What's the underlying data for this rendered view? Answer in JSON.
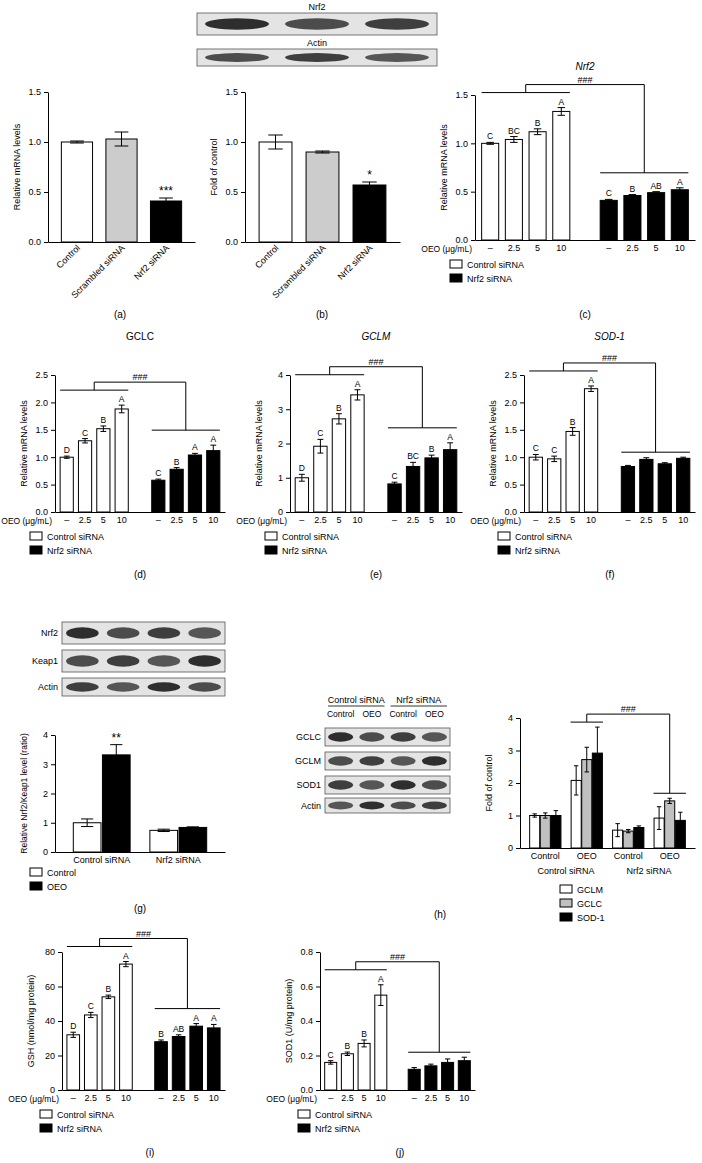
{
  "chart_data": [
    {
      "type": "bar",
      "caption": "(a)",
      "ylabel": "Relative mRNA levels",
      "categories": [
        "Control",
        "Scrambled siRNA",
        "Nrf2 siRNA"
      ],
      "values": [
        1.0,
        1.03,
        0.41
      ],
      "errors": [
        0.01,
        0.07,
        0.03
      ],
      "colors": [
        "#ffffff",
        "#cccccc",
        "#000000"
      ],
      "significance": [
        null,
        null,
        "***"
      ],
      "ylim": [
        0,
        1.5
      ],
      "yticks": [
        {
          "value": 0,
          "label": "0.0"
        },
        {
          "value": 0.5,
          "label": "0.5"
        },
        {
          "value": 1,
          "label": "1.0"
        },
        {
          "value": 1.5,
          "label": "1.5"
        }
      ]
    },
    {
      "type": "bar",
      "caption": "(b)",
      "ylabel": "Fold of control",
      "categories": [
        "Control",
        "Scrambled siRNA",
        "Nrf2 siRNA"
      ],
      "values": [
        1.0,
        0.9,
        0.57
      ],
      "errors": [
        0.07,
        0.01,
        0.03
      ],
      "colors": [
        "#ffffff",
        "#cccccc",
        "#000000"
      ],
      "significance": [
        null,
        null,
        "*"
      ],
      "ylim": [
        0,
        1.5
      ],
      "yticks": [
        {
          "value": 0,
          "label": "0.0"
        },
        {
          "value": 0.5,
          "label": "0.5"
        },
        {
          "value": 1,
          "label": "1.0"
        },
        {
          "value": 1.5,
          "label": "1.5"
        }
      ]
    },
    {
      "type": "bar",
      "caption": "(c)",
      "title": "Nrf2",
      "ylabel": "Relative mRNA levels",
      "xlabel": "OEO (μg/mL)",
      "categories": [
        "–",
        "2.5",
        "5",
        "10"
      ],
      "series": [
        {
          "name": "Control siRNA",
          "color": "#ffffff",
          "values": [
            1.0,
            1.04,
            1.12,
            1.33
          ],
          "errors": [
            0.01,
            0.03,
            0.03,
            0.04
          ],
          "significance": [
            "C",
            "BC",
            "B",
            "A"
          ]
        },
        {
          "name": "Nrf2 siRNA",
          "color": "#000000",
          "values": [
            0.41,
            0.46,
            0.49,
            0.52
          ],
          "errors": [
            0.01,
            0.01,
            0.01,
            0.02
          ],
          "significance": [
            "C",
            "B",
            "AB",
            "A"
          ]
        }
      ],
      "comparison": "###",
      "legend": "bottom",
      "ylim": [
        0,
        1.5
      ],
      "yticks": [
        {
          "value": 0,
          "label": "0.0"
        },
        {
          "value": 0.5,
          "label": "0.5"
        },
        {
          "value": 1,
          "label": "1.0"
        },
        {
          "value": 1.5,
          "label": "1.5"
        }
      ]
    },
    {
      "type": "bar",
      "caption": "(d)",
      "title": "GCLC",
      "ylabel": "Relative mRNA levels",
      "xlabel": "OEO (μg/mL)",
      "categories": [
        "–",
        "2.5",
        "5",
        "10"
      ],
      "series": [
        {
          "name": "Control siRNA",
          "color": "#ffffff",
          "values": [
            1.0,
            1.3,
            1.52,
            1.88
          ],
          "errors": [
            0.02,
            0.04,
            0.05,
            0.07
          ],
          "significance": [
            "D",
            "C",
            "B",
            "A"
          ]
        },
        {
          "name": "Nrf2 siRNA",
          "color": "#000000",
          "values": [
            0.58,
            0.78,
            1.04,
            1.12
          ],
          "errors": [
            0.02,
            0.03,
            0.03,
            0.1
          ],
          "significance": [
            "C",
            "B",
            "A",
            "A"
          ]
        }
      ],
      "comparison": "###",
      "legend": "bottom",
      "ylim": [
        0,
        2.5
      ],
      "yticks": [
        {
          "value": 0,
          "label": "0.0"
        },
        {
          "value": 0.5,
          "label": "0.5"
        },
        {
          "value": 1,
          "label": "1.0"
        },
        {
          "value": 1.5,
          "label": "1.5"
        },
        {
          "value": 2,
          "label": "2.0"
        },
        {
          "value": 2.5,
          "label": "2.5"
        }
      ]
    },
    {
      "type": "bar",
      "caption": "(e)",
      "title": "GCLM",
      "ylabel": "Relative mRNA levels",
      "xlabel": "OEO (μg/mL)",
      "categories": [
        "–",
        "2.5",
        "5",
        "10"
      ],
      "series": [
        {
          "name": "Control siRNA",
          "color": "#ffffff",
          "values": [
            1.0,
            1.92,
            2.72,
            3.42
          ],
          "errors": [
            0.1,
            0.2,
            0.15,
            0.15
          ],
          "significance": [
            "D",
            "C",
            "B",
            "A"
          ]
        },
        {
          "name": "Nrf2 siRNA",
          "color": "#000000",
          "values": [
            0.82,
            1.33,
            1.58,
            1.82
          ],
          "errors": [
            0.05,
            0.12,
            0.08,
            0.2
          ],
          "significance": [
            "C",
            "BC",
            "B",
            "A"
          ]
        }
      ],
      "comparison": "###",
      "legend": "bottom",
      "ylim": [
        0,
        4
      ],
      "yticks": [
        0,
        1,
        2,
        3,
        4
      ]
    },
    {
      "type": "bar",
      "caption": "(f)",
      "title": "SOD-1",
      "ylabel": "Relative mRNA levels",
      "xlabel": "OEO (μg/mL)",
      "categories": [
        "–",
        "2.5",
        "5",
        "10"
      ],
      "series": [
        {
          "name": "Control siRNA",
          "color": "#ffffff",
          "values": [
            1.0,
            0.97,
            1.47,
            2.25
          ],
          "errors": [
            0.05,
            0.05,
            0.07,
            0.05
          ],
          "significance": [
            "C",
            "C",
            "B",
            "A"
          ]
        },
        {
          "name": "Nrf2 siRNA",
          "color": "#000000",
          "values": [
            0.83,
            0.96,
            0.88,
            0.98
          ],
          "errors": [
            0.02,
            0.03,
            0.02,
            0.02
          ]
        }
      ],
      "comparison": "###",
      "legend": "bottom",
      "ylim": [
        0,
        2.5
      ],
      "yticks": [
        {
          "value": 0,
          "label": "0.0"
        },
        {
          "value": 0.5,
          "label": "0.5"
        },
        {
          "value": 1,
          "label": "1.0"
        },
        {
          "value": 1.5,
          "label": "1.5"
        },
        {
          "value": 2,
          "label": "2.0"
        },
        {
          "value": 2.5,
          "label": "2.5"
        }
      ]
    },
    {
      "type": "bar",
      "caption": "(g)",
      "ylabel": "Relative Nrf2/Keap1 level (ratio)",
      "categories": [
        "Control siRNA",
        "Nrf2 siRNA"
      ],
      "series": [
        {
          "name": "Control",
          "color": "#ffffff",
          "values": [
            1.0,
            0.74
          ],
          "errors": [
            0.13,
            0.04
          ],
          "significance": [
            null,
            null
          ]
        },
        {
          "name": "OEO",
          "color": "#000000",
          "values": [
            3.32,
            0.84
          ],
          "errors": [
            0.35,
            0.02
          ],
          "significance": [
            "**",
            null
          ]
        }
      ],
      "legend": "bottom",
      "ylim": [
        0,
        4
      ],
      "yticks": [
        0,
        1,
        2,
        3,
        4
      ]
    },
    {
      "type": "bar",
      "caption": "(h)",
      "ylabel": "Fold of control",
      "categories": [
        "Control",
        "OEO",
        "Control",
        "OEO"
      ],
      "category_groups": [
        "Control siRNA",
        "Nrf2 siRNA"
      ],
      "series": [
        {
          "name": "GCLM",
          "color": "#ffffff",
          "values": [
            1.0,
            2.08,
            0.55,
            0.92
          ],
          "errors": [
            0.05,
            0.45,
            0.2,
            0.35
          ]
        },
        {
          "name": "GCLC",
          "color": "#c0c0c0",
          "values": [
            1.0,
            2.72,
            0.52,
            1.45
          ],
          "errors": [
            0.08,
            0.38,
            0.05,
            0.08
          ]
        },
        {
          "name": "SOD-1",
          "color": "#000000",
          "values": [
            1.0,
            2.92,
            0.63,
            0.85
          ],
          "errors": [
            0.15,
            0.8,
            0.05,
            0.25
          ]
        }
      ],
      "comparison": "###",
      "legend": "bottom",
      "ylim": [
        0,
        4
      ],
      "yticks": [
        0,
        1,
        2,
        3,
        4
      ]
    },
    {
      "type": "bar",
      "caption": "(i)",
      "ylabel": "GSH (nmol/mg protein)",
      "xlabel": "OEO (μg/mL)",
      "categories": [
        "–",
        "2.5",
        "5",
        "10"
      ],
      "series": [
        {
          "name": "Control siRNA",
          "color": "#ffffff",
          "values": [
            32,
            43.5,
            54,
            73
          ],
          "errors": [
            1.5,
            1.5,
            1,
            1.5
          ],
          "significance": [
            "D",
            "C",
            "B",
            "A"
          ]
        },
        {
          "name": "Nrf2 siRNA",
          "color": "#000000",
          "values": [
            28,
            31,
            37,
            36
          ],
          "errors": [
            1,
            1,
            1.5,
            2
          ],
          "significance": [
            "B",
            "AB",
            "A",
            "A"
          ]
        }
      ],
      "comparison": "###",
      "legend": "bottom",
      "ylim": [
        0,
        80
      ],
      "yticks": [
        0,
        20,
        40,
        60,
        80
      ]
    },
    {
      "type": "bar",
      "caption": "(j)",
      "ylabel": "SOD1 (U/mg protein)",
      "xlabel": "OEO (μg/mL)",
      "categories": [
        "–",
        "2.5",
        "5",
        "10"
      ],
      "series": [
        {
          "name": "Control siRNA",
          "color": "#ffffff",
          "values": [
            0.16,
            0.21,
            0.27,
            0.55
          ],
          "errors": [
            0.01,
            0.01,
            0.02,
            0.06
          ],
          "significance": [
            "C",
            "B",
            "B",
            "A"
          ]
        },
        {
          "name": "Nrf2 siRNA",
          "color": "#000000",
          "values": [
            0.12,
            0.14,
            0.16,
            0.17
          ],
          "errors": [
            0.01,
            0.01,
            0.02,
            0.02
          ]
        }
      ],
      "comparison": "###",
      "legend": "bottom",
      "ylim": [
        0,
        0.8
      ],
      "yticks": [
        {
          "value": 0,
          "label": "0.0"
        },
        {
          "value": 0.2,
          "label": "0.2"
        },
        {
          "value": 0.4,
          "label": "0.4"
        },
        {
          "value": 0.6,
          "label": "0.6"
        },
        {
          "value": 0.8,
          "label": "0.8"
        }
      ]
    }
  ],
  "blots": [
    {
      "rows": [
        "Nrf2",
        "Actin"
      ]
    },
    {
      "rows": [
        "Nrf2",
        "Keap1",
        "Actin"
      ]
    },
    {
      "rows": [
        "GCLC",
        "GCLM",
        "SOD1",
        "Actin"
      ],
      "column_groups": [
        "Control siRNA",
        "Nrf2 siRNA"
      ],
      "columns": [
        "Control",
        "OEO",
        "Control",
        "OEO"
      ]
    }
  ]
}
